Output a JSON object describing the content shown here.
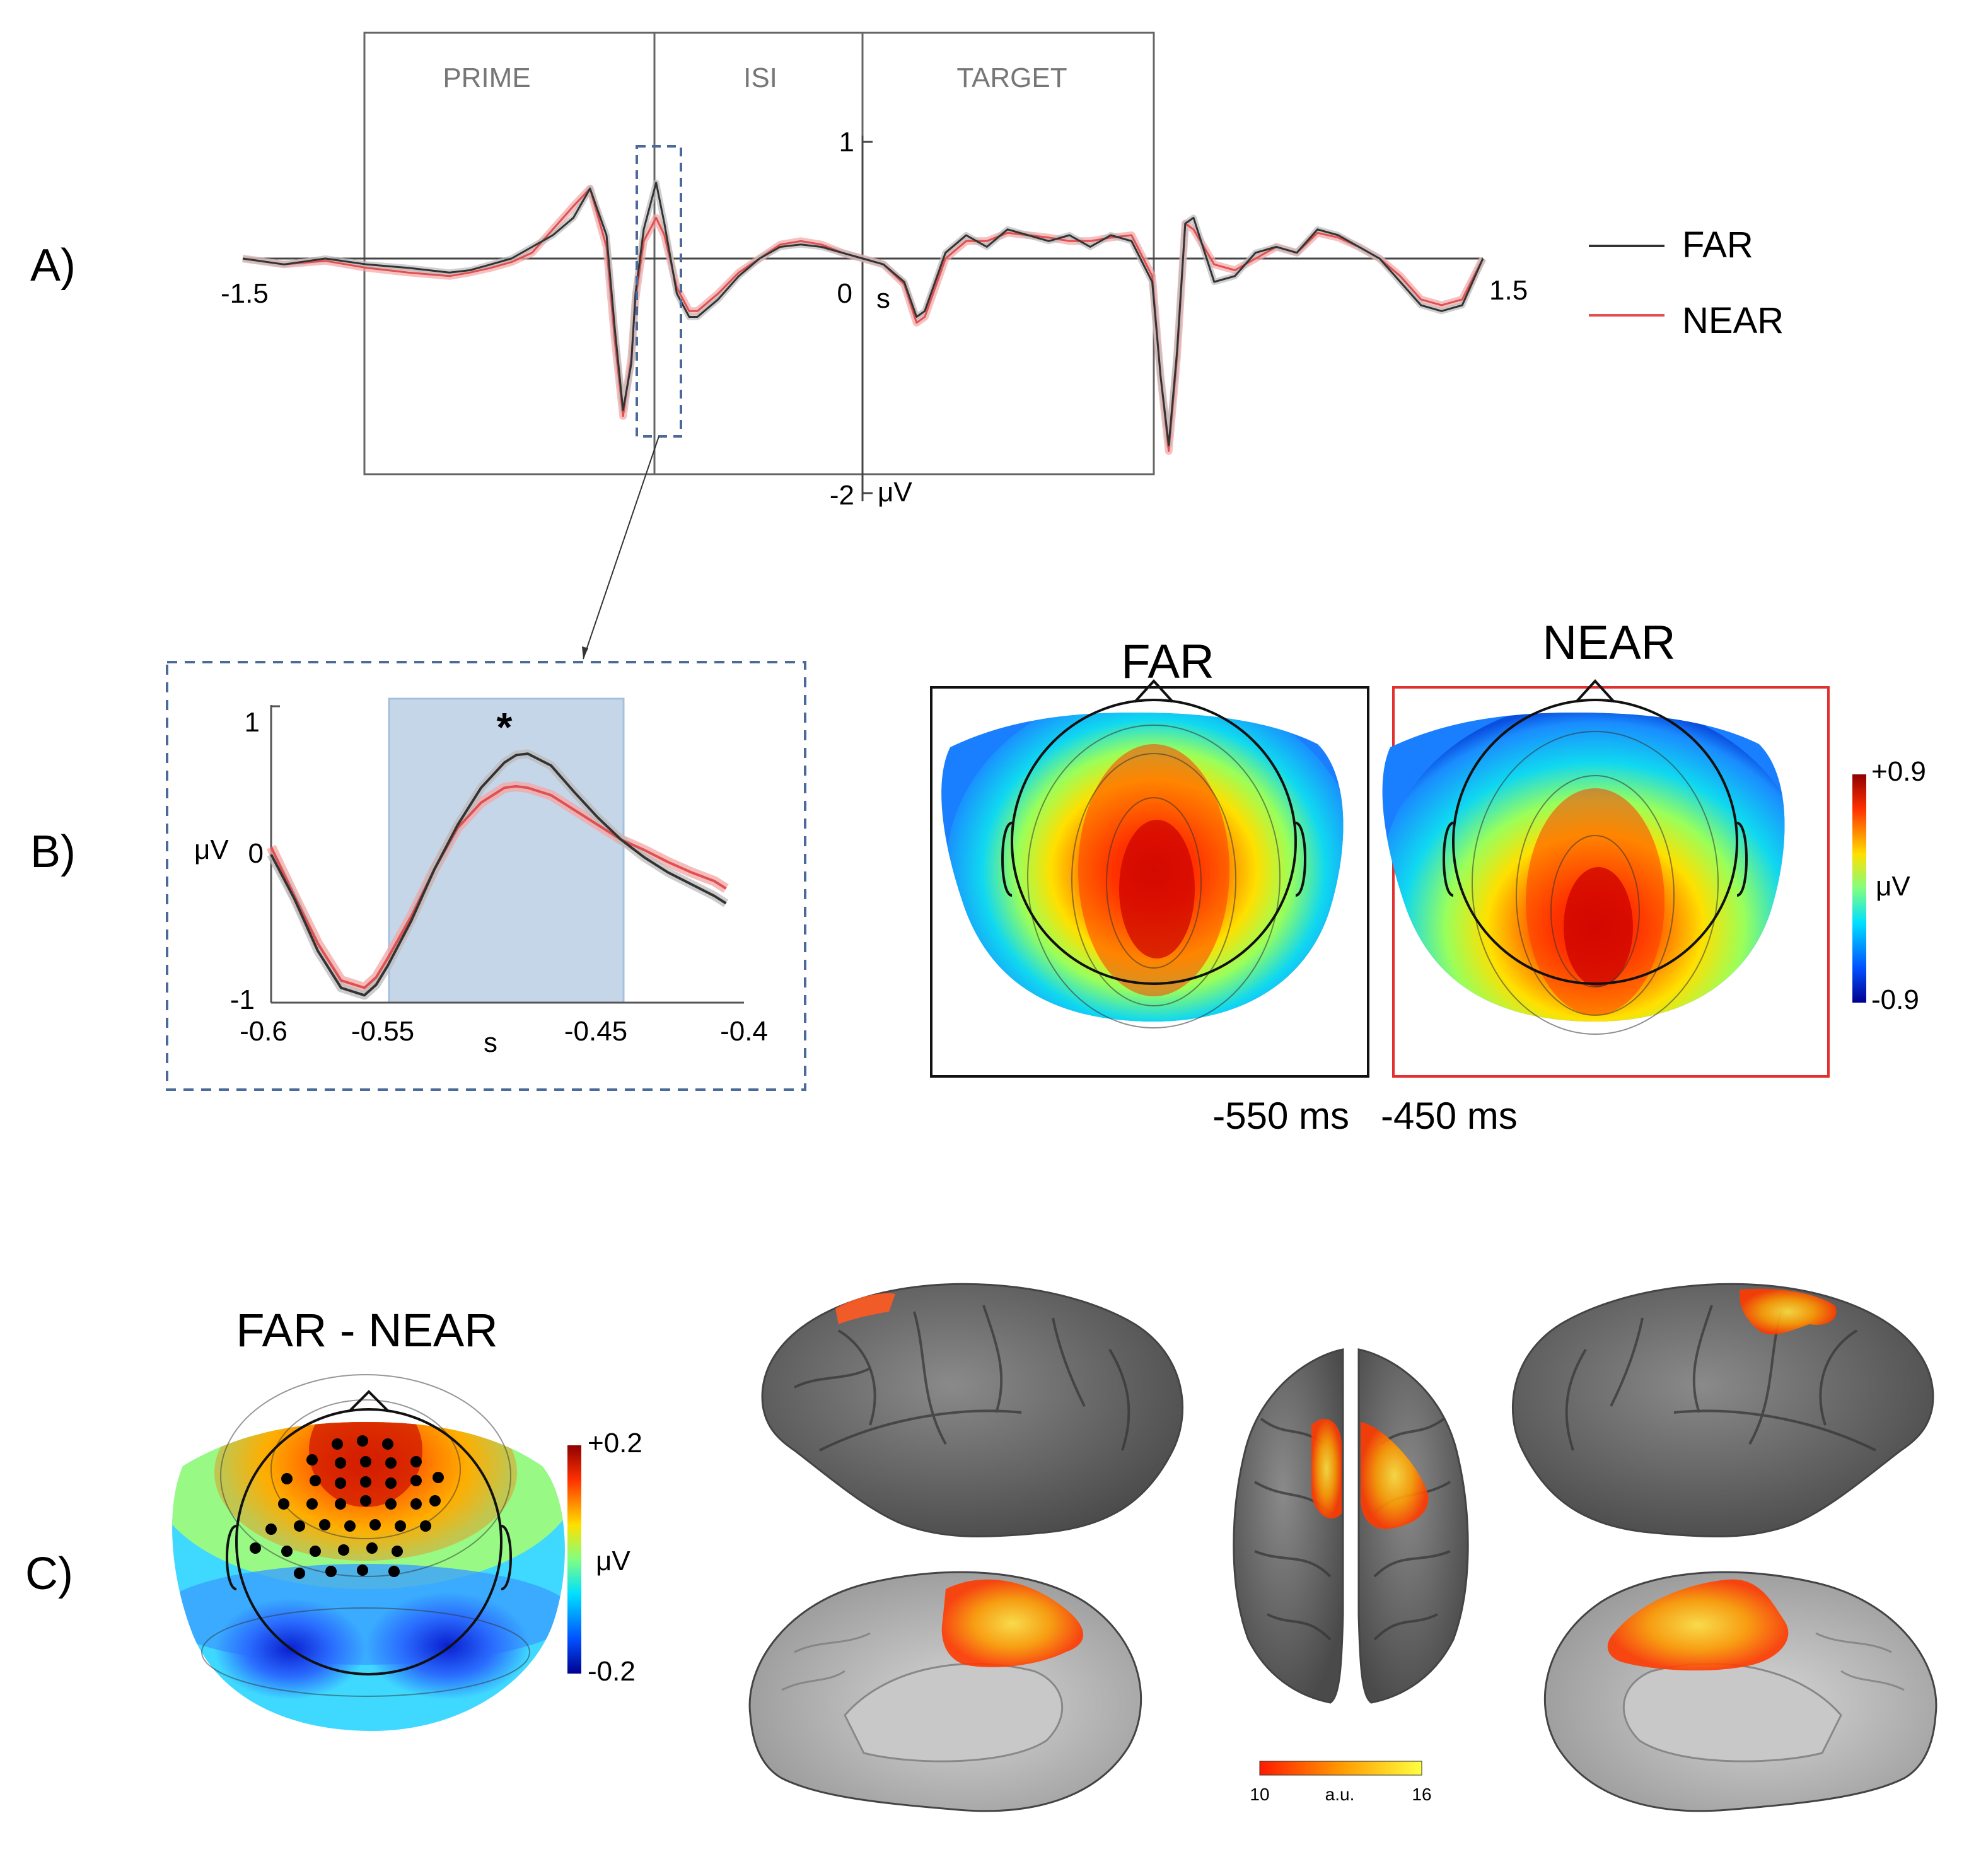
{
  "colors": {
    "far": "#333333",
    "near": "#e05050",
    "dashed_box": "#4a6a99",
    "shade": "#b8cce4"
  },
  "panel_labels": {
    "a": "A)",
    "b": "B)",
    "c": "C)"
  },
  "panel_a": {
    "epochs": [
      "PRIME",
      "ISI",
      "TARGET"
    ],
    "legend": {
      "far": "FAR",
      "near": "NEAR"
    },
    "x_ticks": {
      "left": "-1.5",
      "zero": "0",
      "right": "1.5"
    },
    "x_unit": "s",
    "y_ticks": {
      "top": "1",
      "bottom": "-2"
    },
    "y_unit": "μV"
  },
  "panel_b": {
    "significance": "*",
    "y_unit": "μV",
    "x_unit": "s",
    "y_ticks": [
      "1",
      "0",
      "-1"
    ],
    "x_ticks": [
      "-0.6",
      "-0.55",
      "-0.45",
      "-0.4"
    ],
    "topo_titles": {
      "far": "FAR",
      "near": "NEAR"
    },
    "time_window": {
      "start": "-550 ms",
      "end": "-450 ms"
    },
    "colorbar": {
      "max": "+0.9",
      "unit": "μV",
      "min": "-0.9"
    }
  },
  "panel_c": {
    "title": "FAR - NEAR",
    "colorbar": {
      "max": "+0.2",
      "unit": "μV",
      "min": "-0.2"
    },
    "source_scale": {
      "min": "10",
      "label": "a.u.",
      "max": "16"
    }
  },
  "chart_data": [
    {
      "type": "line",
      "title": "",
      "xlabel": "s",
      "ylabel": "μV",
      "xlim": [
        -1.5,
        1.5
      ],
      "ylim": [
        -2,
        1
      ],
      "series": [
        {
          "name": "FAR",
          "x": [
            -1.5,
            -1.4,
            -1.3,
            -1.2,
            -1.1,
            -1.0,
            -0.95,
            -0.9,
            -0.85,
            -0.8,
            -0.75,
            -0.7,
            -0.66,
            -0.62,
            -0.6,
            -0.58,
            -0.56,
            -0.55,
            -0.53,
            -0.5,
            -0.48,
            -0.45,
            -0.42,
            -0.4,
            -0.35,
            -0.3,
            -0.25,
            -0.2,
            -0.15,
            -0.1,
            -0.05,
            0.0,
            0.05,
            0.1,
            0.13,
            0.15,
            0.18,
            0.2,
            0.25,
            0.3,
            0.35,
            0.4,
            0.45,
            0.5,
            0.55,
            0.6,
            0.65,
            0.7,
            0.72,
            0.74,
            0.76,
            0.78,
            0.8,
            0.85,
            0.9,
            0.95,
            1.0,
            1.05,
            1.1,
            1.15,
            1.2,
            1.25,
            1.3,
            1.35,
            1.4,
            1.45,
            1.5
          ],
          "y": [
            0.0,
            -0.05,
            0.0,
            -0.05,
            -0.08,
            -0.12,
            -0.1,
            -0.05,
            0.0,
            0.1,
            0.2,
            0.35,
            0.6,
            0.2,
            -0.6,
            -1.3,
            -0.9,
            -0.3,
            0.25,
            0.65,
            0.3,
            -0.3,
            -0.5,
            -0.5,
            -0.35,
            -0.15,
            0.0,
            0.1,
            0.12,
            0.1,
            0.05,
            0.0,
            -0.05,
            -0.2,
            -0.5,
            -0.45,
            -0.15,
            0.05,
            0.2,
            0.1,
            0.25,
            0.2,
            0.15,
            0.2,
            0.1,
            0.2,
            0.15,
            -0.2,
            -1.0,
            -1.6,
            -0.8,
            0.3,
            0.35,
            -0.2,
            -0.15,
            0.05,
            0.1,
            0.05,
            0.25,
            0.2,
            0.1,
            0.0,
            -0.2,
            -0.4,
            -0.45,
            -0.4,
            0.0
          ]
        },
        {
          "name": "NEAR",
          "x": [
            -1.5,
            -1.4,
            -1.3,
            -1.2,
            -1.1,
            -1.0,
            -0.95,
            -0.9,
            -0.85,
            -0.8,
            -0.75,
            -0.7,
            -0.66,
            -0.62,
            -0.6,
            -0.58,
            -0.56,
            -0.55,
            -0.53,
            -0.5,
            -0.48,
            -0.45,
            -0.42,
            -0.4,
            -0.35,
            -0.3,
            -0.25,
            -0.2,
            -0.15,
            -0.1,
            -0.05,
            0.0,
            0.05,
            0.1,
            0.13,
            0.15,
            0.18,
            0.2,
            0.25,
            0.3,
            0.35,
            0.4,
            0.45,
            0.5,
            0.55,
            0.6,
            0.65,
            0.7,
            0.72,
            0.74,
            0.76,
            0.78,
            0.8,
            0.85,
            0.9,
            0.95,
            1.0,
            1.05,
            1.1,
            1.15,
            1.2,
            1.25,
            1.3,
            1.35,
            1.4,
            1.45,
            1.5
          ],
          "y": [
            0.0,
            -0.05,
            -0.02,
            -0.08,
            -0.12,
            -0.15,
            -0.12,
            -0.08,
            -0.03,
            0.05,
            0.25,
            0.45,
            0.6,
            0.1,
            -0.7,
            -1.35,
            -0.85,
            -0.35,
            0.15,
            0.35,
            0.2,
            -0.25,
            -0.45,
            -0.45,
            -0.3,
            -0.12,
            0.0,
            0.12,
            0.15,
            0.12,
            0.05,
            0.0,
            -0.05,
            -0.22,
            -0.55,
            -0.5,
            -0.2,
            0.0,
            0.15,
            0.15,
            0.22,
            0.2,
            0.18,
            0.15,
            0.15,
            0.18,
            0.2,
            -0.15,
            -1.0,
            -1.65,
            -0.85,
            0.3,
            0.25,
            -0.05,
            -0.1,
            0.0,
            0.1,
            0.05,
            0.22,
            0.18,
            0.1,
            0.0,
            -0.15,
            -0.35,
            -0.4,
            -0.35,
            0.0
          ]
        }
      ]
    },
    {
      "type": "line",
      "title": "",
      "xlabel": "s",
      "ylabel": "μV",
      "xlim": [
        -0.6,
        -0.4
      ],
      "ylim": [
        -1,
        1
      ],
      "highlight_window": [
        -0.55,
        -0.45
      ],
      "series": [
        {
          "name": "FAR",
          "x": [
            -0.6,
            -0.59,
            -0.58,
            -0.57,
            -0.56,
            -0.555,
            -0.55,
            -0.54,
            -0.53,
            -0.52,
            -0.51,
            -0.5,
            -0.495,
            -0.49,
            -0.48,
            -0.47,
            -0.46,
            -0.45,
            -0.44,
            -0.43,
            -0.42,
            -0.41,
            -0.405
          ],
          "y": [
            0.0,
            -0.3,
            -0.65,
            -0.9,
            -0.95,
            -0.88,
            -0.75,
            -0.45,
            -0.1,
            0.2,
            0.45,
            0.62,
            0.67,
            0.68,
            0.6,
            0.42,
            0.25,
            0.1,
            -0.02,
            -0.12,
            -0.2,
            -0.28,
            -0.33
          ]
        },
        {
          "name": "NEAR",
          "x": [
            -0.6,
            -0.59,
            -0.58,
            -0.57,
            -0.56,
            -0.555,
            -0.55,
            -0.54,
            -0.53,
            -0.52,
            -0.51,
            -0.5,
            -0.495,
            -0.49,
            -0.48,
            -0.47,
            -0.46,
            -0.45,
            -0.44,
            -0.43,
            -0.42,
            -0.41,
            -0.405
          ],
          "y": [
            0.05,
            -0.28,
            -0.6,
            -0.85,
            -0.9,
            -0.83,
            -0.7,
            -0.42,
            -0.1,
            0.18,
            0.35,
            0.45,
            0.46,
            0.45,
            0.4,
            0.3,
            0.2,
            0.1,
            0.03,
            -0.05,
            -0.12,
            -0.18,
            -0.23
          ]
        }
      ]
    }
  ]
}
